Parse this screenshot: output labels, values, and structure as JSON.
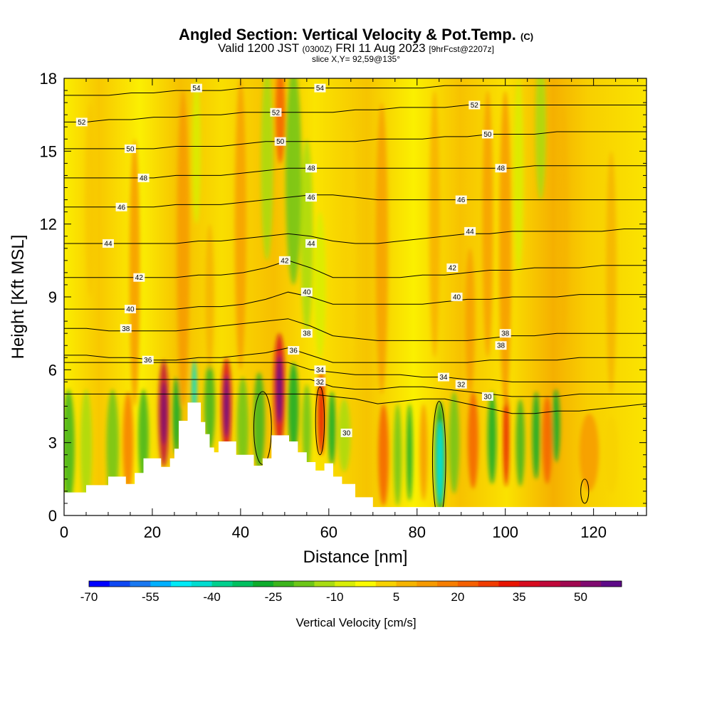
{
  "chart_data": {
    "type": "heatmap",
    "title": "Angled Section: Vertical Velocity & Pot.Temp.",
    "title_unit": "(C)",
    "subtitle": {
      "valid_prefix": "Valid 1200 JST",
      "utc": "(0300Z)",
      "date": "FRI 11 Aug 2023",
      "forecast": "[9hrFcst@2207z]"
    },
    "slice_label": "slice X,Y= 92,59@135°",
    "xlabel": "Distance [nm]",
    "ylabel": "Height [Kft MSL]",
    "xlim": [
      0,
      132
    ],
    "ylim": [
      0,
      18
    ],
    "x_ticks": [
      "0",
      "20",
      "40",
      "60",
      "80",
      "100",
      "120"
    ],
    "y_ticks": [
      "0",
      "3",
      "6",
      "9",
      "12",
      "15",
      "18"
    ],
    "colorbar": {
      "label": "Vertical Velocity [cm/s]",
      "tick_labels": [
        "-70",
        "-55",
        "-40",
        "-25",
        "-10",
        "5",
        "20",
        "35",
        "50"
      ],
      "colors": [
        "#0000ff",
        "#0f48f2",
        "#1a78f0",
        "#00b0ff",
        "#00eaf6",
        "#00ddd0",
        "#00d08e",
        "#00c060",
        "#0eac2c",
        "#3cb41c",
        "#6dc618",
        "#a8dc12",
        "#d8ee06",
        "#fbfb00",
        "#f8d200",
        "#f6b400",
        "#f79a00",
        "#f77e00",
        "#f56000",
        "#f03c00",
        "#e81400",
        "#d70b1e",
        "#c0083a",
        "#a00850",
        "#800a70",
        "#5e0a88"
      ]
    },
    "theta_contours": [
      {
        "value": 30,
        "y": [
          5.0,
          5.0,
          5.0,
          5.0,
          5.0,
          5.0,
          5.0,
          5.0,
          5.0,
          5.0,
          5.0,
          5.0,
          4.9,
          4.8,
          4.6,
          4.7,
          4.8,
          4.8,
          4.6,
          4.4,
          4.2,
          4.2,
          4.3,
          4.3,
          4.4,
          4.5,
          4.6
        ]
      },
      {
        "value": 32,
        "y": [
          5.6,
          5.6,
          5.6,
          5.6,
          5.6,
          5.6,
          5.6,
          5.6,
          5.6,
          5.6,
          5.6,
          5.6,
          5.3,
          5.2,
          5.2,
          5.3,
          5.3,
          5.2,
          5.1,
          5.0,
          4.9,
          4.9,
          4.9,
          5.0,
          5.0,
          5.0,
          5.0
        ]
      },
      {
        "value": 34,
        "y": [
          6.3,
          6.3,
          6.3,
          6.3,
          6.3,
          6.3,
          6.3,
          6.3,
          6.3,
          6.3,
          6.3,
          6.0,
          5.9,
          5.8,
          5.8,
          5.8,
          5.7,
          5.7,
          5.6,
          5.6,
          5.5,
          5.5,
          5.5,
          5.5,
          5.5,
          5.5,
          5.5
        ]
      },
      {
        "value": 36,
        "y": [
          6.6,
          6.6,
          6.5,
          6.5,
          6.4,
          6.4,
          6.5,
          6.5,
          6.6,
          6.7,
          6.9,
          6.6,
          6.3,
          6.3,
          6.3,
          6.3,
          6.3,
          6.3,
          6.3,
          6.4,
          6.4,
          6.4,
          6.4,
          6.5,
          6.5,
          6.5,
          6.5
        ]
      },
      {
        "value": 38,
        "y": [
          7.7,
          7.7,
          7.6,
          7.6,
          7.6,
          7.6,
          7.7,
          7.8,
          7.9,
          8.0,
          8.1,
          7.8,
          7.4,
          7.3,
          7.2,
          7.2,
          7.2,
          7.2,
          7.2,
          7.3,
          7.4,
          7.4,
          7.5,
          7.5,
          7.5,
          7.5,
          7.5
        ]
      },
      {
        "value": 40,
        "y": [
          8.5,
          8.5,
          8.5,
          8.5,
          8.5,
          8.5,
          8.6,
          8.6,
          8.7,
          8.9,
          9.2,
          9.0,
          8.7,
          8.7,
          8.7,
          8.7,
          8.7,
          8.8,
          8.9,
          8.9,
          9.0,
          9.0,
          9.0,
          9.1,
          9.1,
          9.1,
          9.1
        ]
      },
      {
        "value": 42,
        "y": [
          9.8,
          9.8,
          9.8,
          9.8,
          9.8,
          9.8,
          9.9,
          9.9,
          10.0,
          10.2,
          10.5,
          10.2,
          9.8,
          9.8,
          9.8,
          9.8,
          9.9,
          9.9,
          10.0,
          10.1,
          10.1,
          10.2,
          10.2,
          10.2,
          10.3,
          10.3,
          10.3
        ]
      },
      {
        "value": 44,
        "y": [
          11.2,
          11.2,
          11.2,
          11.2,
          11.2,
          11.2,
          11.3,
          11.3,
          11.4,
          11.5,
          11.6,
          11.5,
          11.3,
          11.2,
          11.2,
          11.3,
          11.4,
          11.5,
          11.6,
          11.6,
          11.7,
          11.7,
          11.7,
          11.7,
          11.7,
          11.8,
          11.8
        ]
      },
      {
        "value": 46,
        "y": [
          12.7,
          12.7,
          12.7,
          12.7,
          12.7,
          12.8,
          12.8,
          12.8,
          12.9,
          13.0,
          13.1,
          13.2,
          13.2,
          13.1,
          13.0,
          13.0,
          13.0,
          13.0,
          13.0,
          13.0,
          13.0,
          13.0,
          13.0,
          13.0,
          13.0,
          13.0,
          13.0
        ]
      },
      {
        "value": 48,
        "y": [
          13.9,
          13.9,
          13.9,
          13.9,
          13.9,
          14.0,
          14.0,
          14.0,
          14.1,
          14.2,
          14.3,
          14.3,
          14.3,
          14.3,
          14.3,
          14.3,
          14.3,
          14.3,
          14.3,
          14.3,
          14.3,
          14.4,
          14.4,
          14.4,
          14.4,
          14.4,
          14.4
        ]
      },
      {
        "value": 50,
        "y": [
          15.1,
          15.1,
          15.1,
          15.1,
          15.1,
          15.2,
          15.2,
          15.2,
          15.3,
          15.4,
          15.4,
          15.4,
          15.4,
          15.4,
          15.5,
          15.5,
          15.5,
          15.6,
          15.6,
          15.7,
          15.7,
          15.7,
          15.8,
          15.8,
          15.8,
          15.8,
          15.8
        ]
      },
      {
        "value": 52,
        "y": [
          16.2,
          16.2,
          16.3,
          16.3,
          16.4,
          16.4,
          16.5,
          16.5,
          16.6,
          16.6,
          16.6,
          16.6,
          16.6,
          16.7,
          16.7,
          16.8,
          16.8,
          16.8,
          16.9,
          16.9,
          16.9,
          16.9,
          16.9,
          16.9,
          16.9,
          16.9,
          16.9
        ]
      },
      {
        "value": 54,
        "y": [
          17.3,
          17.3,
          17.3,
          17.4,
          17.4,
          17.5,
          17.5,
          17.5,
          17.6,
          17.6,
          17.6,
          17.6,
          17.6,
          17.6,
          17.6,
          17.6,
          17.6,
          17.7,
          17.7,
          17.7,
          17.7,
          17.7,
          17.7,
          17.7,
          17.7,
          17.7,
          17.7
        ]
      }
    ],
    "contour_label_text": [
      "54",
      "54",
      "52",
      "52",
      "52",
      "50",
      "50",
      "50",
      "48",
      "48",
      "48",
      "46",
      "46",
      "46",
      "44",
      "44",
      "44",
      "42",
      "42",
      "42",
      "40",
      "40",
      "40",
      "38",
      "38",
      "38",
      "36",
      "36",
      "38",
      "34",
      "34",
      "32",
      "32",
      "30",
      "30"
    ],
    "terrain": {
      "x": [
        0,
        0,
        5,
        5,
        10,
        10,
        14,
        14,
        16,
        16,
        18,
        18,
        22,
        22,
        24,
        24,
        25,
        25,
        26,
        26,
        28,
        28,
        31,
        31,
        32,
        32,
        33,
        33,
        34,
        34,
        35,
        35,
        39,
        39,
        43,
        43,
        45,
        45,
        47,
        47,
        49,
        49,
        51,
        51,
        53,
        53,
        55,
        55,
        57,
        57,
        59,
        59,
        61,
        61,
        63,
        63,
        66,
        66,
        70,
        70,
        132,
        132
      ],
      "y": [
        0,
        0.95,
        0.95,
        1.25,
        1.25,
        1.6,
        1.6,
        1.3,
        1.3,
        1.75,
        1.75,
        2.35,
        2.35,
        2.0,
        2.0,
        2.35,
        2.35,
        2.75,
        2.75,
        3.9,
        3.9,
        4.65,
        4.65,
        3.85,
        3.85,
        3.35,
        3.35,
        2.8,
        2.8,
        2.6,
        2.6,
        3.05,
        3.05,
        2.5,
        2.5,
        2.05,
        2.05,
        2.35,
        2.35,
        3.3,
        3.3,
        3.3,
        3.3,
        3.05,
        3.05,
        2.6,
        2.6,
        2.2,
        2.2,
        1.85,
        1.85,
        2.15,
        2.15,
        1.6,
        1.6,
        1.3,
        1.3,
        0.75,
        0.75,
        0.35,
        0.35,
        0
      ]
    }
  }
}
